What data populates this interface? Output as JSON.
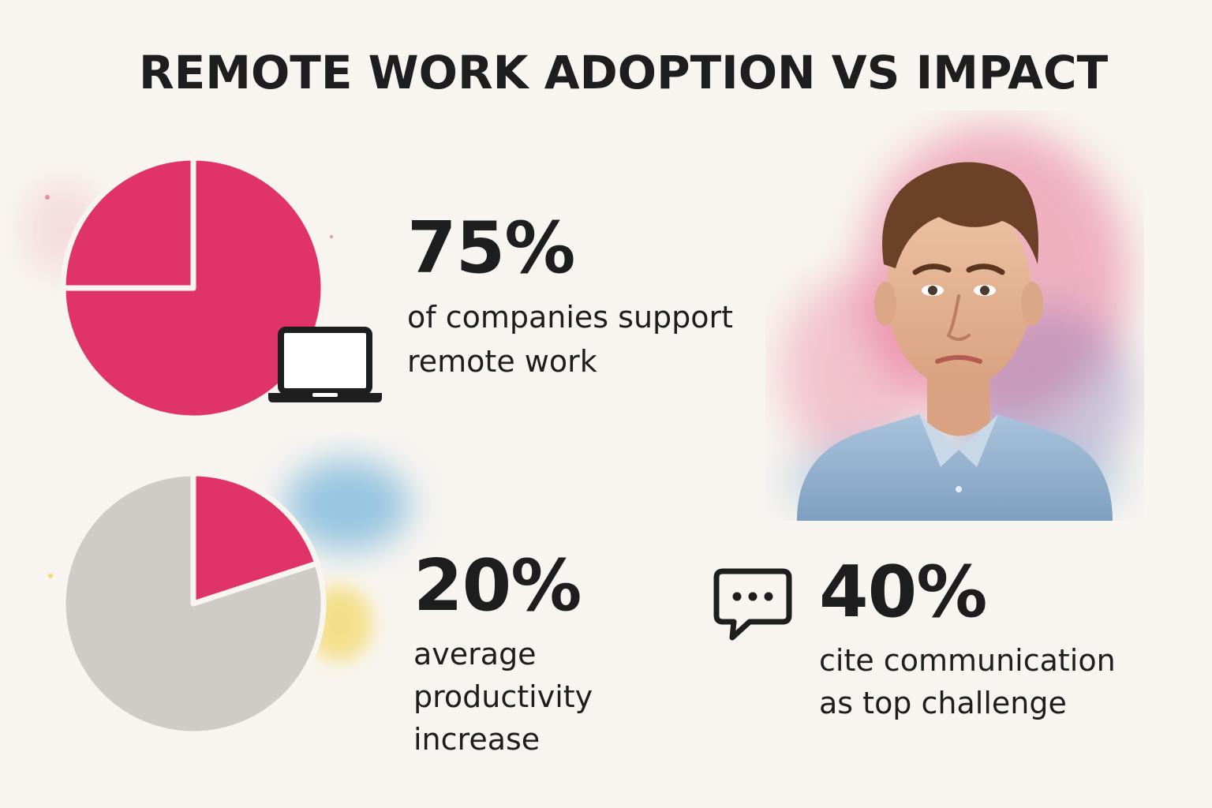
{
  "title": "REMOTE WORK ADOPTION VS IMPACT",
  "stats": {
    "adoption": {
      "value": "75%",
      "line1": "of companies support",
      "line2": "remote work"
    },
    "productivity": {
      "value": "20%",
      "line1": "average",
      "line2": "productivity",
      "line3": "increase"
    },
    "communication": {
      "value": "40%",
      "line1": "cite communication",
      "line2": "as top challenge"
    }
  },
  "icons": {
    "laptop": "laptop-icon",
    "chat": "chat-bubble-icon",
    "portrait": "worried-man-illustration"
  },
  "colors": {
    "accent": "#e0336a",
    "neutral": "#cfccc8",
    "text": "#1e1e1e",
    "background": "#f8f5f0",
    "splash_blue": "#4a9fd4",
    "splash_yellow": "#f1d24a"
  },
  "chart_data": [
    {
      "type": "pie",
      "name": "adoption",
      "slices": [
        {
          "value": 75,
          "color": "#e0336a"
        },
        {
          "value": 25,
          "color": "#e0336a"
        }
      ],
      "start_angle_deg": 0,
      "highlight_percent": 75
    },
    {
      "type": "pie",
      "name": "productivity",
      "slices": [
        {
          "value": 20,
          "color": "#e0336a"
        },
        {
          "value": 80,
          "color": "#cfccc8"
        }
      ],
      "start_angle_deg": 0,
      "highlight_percent": 20
    }
  ]
}
